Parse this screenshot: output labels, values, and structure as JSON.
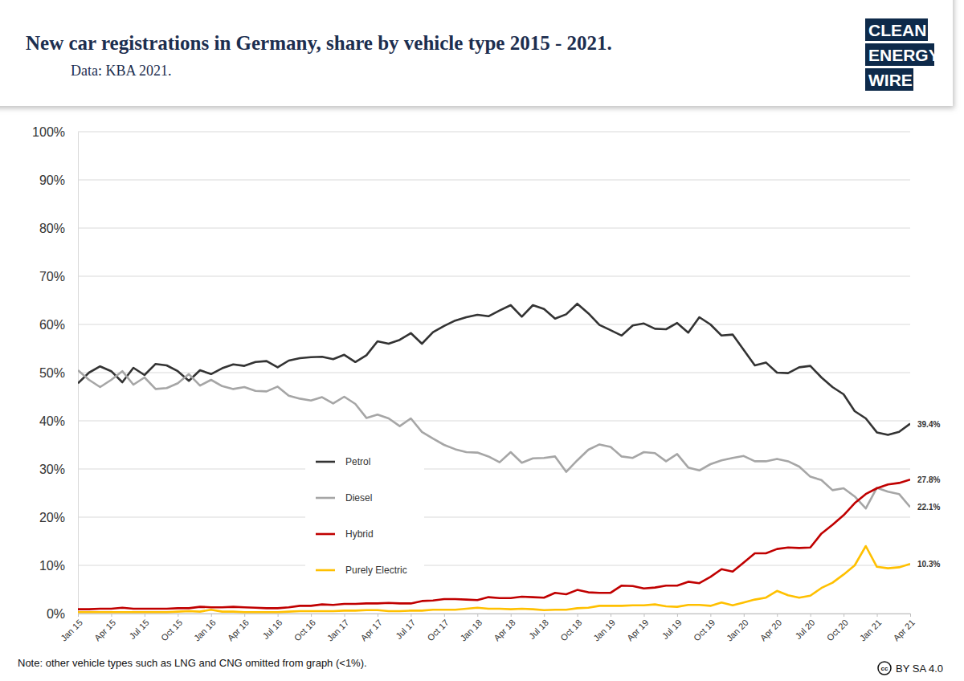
{
  "chart_data": {
    "type": "line",
    "title": "New car registrations in Germany, share by vehicle type 2015 - 2021.",
    "subtitle": "Data: KBA 2021.",
    "note": "Note: other vehicle types such as LNG and CNG omitted from graph (<1%).",
    "logo": [
      "CLEAN",
      "ENERGY",
      "WIRE"
    ],
    "license_icon": "cc",
    "license": "BY SA 4.0",
    "categories": [
      "Jan 15",
      null,
      null,
      "Apr 15",
      null,
      null,
      "Jul 15",
      null,
      null,
      "Oct 15",
      null,
      null,
      "Jan 16",
      null,
      null,
      "Apr 16",
      null,
      null,
      "Jul 16",
      null,
      null,
      "Oct 16",
      null,
      null,
      "Jan 17",
      null,
      null,
      "Apr 17",
      null,
      null,
      "Jul 17",
      null,
      null,
      "Oct 17",
      null,
      null,
      "Jan 18",
      null,
      null,
      "Apr 18",
      null,
      null,
      "Jul 18",
      null,
      null,
      "Oct 18",
      null,
      null,
      "Jan 19",
      null,
      null,
      "Apr 19",
      null,
      null,
      "Jul 19",
      null,
      null,
      "Oct 19",
      null,
      null,
      "Jan 20",
      null,
      null,
      "Apr 20",
      null,
      null,
      "Jul 20",
      null,
      null,
      "Oct 20",
      null,
      null,
      "Jan 21",
      null,
      null,
      "Apr 21"
    ],
    "series": [
      {
        "name": "Petrol",
        "color": "#333333",
        "values": [
          47.8,
          50,
          51.3,
          50.3,
          48,
          51,
          49.5,
          51.8,
          51.5,
          50.3,
          48.3,
          50.5,
          49.7,
          50.9,
          51.7,
          51.4,
          52.2,
          52.4,
          51.1,
          52.5,
          53,
          53.2,
          53.3,
          52.8,
          53.7,
          52.2,
          53.6,
          56.5,
          56,
          56.8,
          58.2,
          56,
          58.4,
          59.7,
          60.8,
          61.5,
          62,
          61.7,
          62.9,
          64,
          61.6,
          64,
          63.2,
          61.2,
          62.1,
          64.3,
          62.3,
          59.9,
          58.8,
          57.7,
          59.8,
          60.2,
          59.1,
          59,
          60.3,
          58.3,
          61.5,
          60,
          57.7,
          57.9,
          54.7,
          51.5,
          52.1,
          50,
          49.9,
          51.1,
          51.4,
          49,
          47,
          45.5,
          42,
          40.5,
          37.6,
          37.1,
          37.7,
          39.4
        ]
      },
      {
        "name": "Diesel",
        "color": "#a6a6a6",
        "values": [
          50.5,
          48.5,
          47,
          48.5,
          50.3,
          47.5,
          49,
          46.6,
          46.8,
          47.8,
          49.7,
          47.3,
          48.5,
          47.2,
          46.6,
          47,
          46.2,
          46.1,
          47.1,
          45.2,
          44.6,
          44.2,
          44.9,
          43.6,
          45,
          43.5,
          40.6,
          41.3,
          40.5,
          38.9,
          40.5,
          37.7,
          36.3,
          35,
          34.1,
          33.5,
          33.4,
          32.6,
          31.4,
          33.5,
          31.3,
          32.2,
          32.3,
          32.6,
          29.4,
          31.8,
          34,
          35.1,
          34.6,
          32.6,
          32.3,
          33.5,
          33.3,
          31.6,
          33.1,
          30.3,
          29.7,
          31,
          31.8,
          32.3,
          32.7,
          31.6,
          31.6,
          32.1,
          31.6,
          30.5,
          28.4,
          27.7,
          25.6,
          26,
          24.3,
          21.8,
          26.1,
          25.3,
          24.8,
          22.1
        ]
      },
      {
        "name": "Hybrid",
        "color": "#c00000",
        "values": [
          0.9,
          0.9,
          1,
          1,
          1.2,
          1,
          1,
          1,
          1,
          1.1,
          1.1,
          1.4,
          1.3,
          1.3,
          1.4,
          1.3,
          1.2,
          1.1,
          1.1,
          1.3,
          1.6,
          1.6,
          1.9,
          1.8,
          2,
          2,
          2.1,
          2.1,
          2.2,
          2.1,
          2.1,
          2.6,
          2.7,
          3,
          3,
          2.9,
          2.8,
          3.4,
          3.2,
          3.2,
          3.5,
          3.4,
          3.3,
          4.3,
          4,
          4.9,
          4.4,
          4.3,
          4.3,
          5.8,
          5.7,
          5.2,
          5.4,
          5.8,
          5.8,
          6.6,
          6.3,
          7.6,
          9.2,
          8.7,
          10.6,
          12.5,
          12.5,
          13.4,
          13.7,
          13.6,
          13.7,
          16.6,
          18.4,
          20.4,
          22.9,
          24.8,
          26,
          26.8,
          27.1,
          27.8
        ]
      },
      {
        "name": "Purely Electric",
        "color": "#ffc000",
        "values": [
          0.3,
          0.3,
          0.3,
          0.3,
          0.3,
          0.3,
          0.3,
          0.3,
          0.3,
          0.4,
          0.5,
          0.4,
          0.8,
          0.4,
          0.4,
          0.3,
          0.3,
          0.3,
          0.3,
          0.4,
          0.5,
          0.5,
          0.5,
          0.5,
          0.6,
          0.6,
          0.7,
          0.7,
          0.5,
          0.5,
          0.6,
          0.6,
          0.8,
          0.8,
          0.8,
          1,
          1.2,
          1,
          1,
          0.9,
          1,
          0.9,
          0.7,
          0.8,
          0.8,
          1.1,
          1.2,
          1.6,
          1.6,
          1.6,
          1.7,
          1.7,
          1.9,
          1.5,
          1.4,
          1.8,
          1.8,
          1.6,
          2.3,
          1.7,
          2.3,
          2.9,
          3.3,
          4.7,
          3.8,
          3.3,
          3.7,
          5.3,
          6.4,
          8.1,
          10,
          14,
          9.7,
          9.4,
          9.6,
          10.3
        ]
      }
    ],
    "ylim": [
      0,
      100
    ],
    "yticks": [
      {
        "value": 0,
        "label": "0%"
      },
      {
        "value": 10,
        "label": "10%"
      },
      {
        "value": 20,
        "label": "20%"
      },
      {
        "value": 30,
        "label": "30%"
      },
      {
        "value": 40,
        "label": "40%"
      },
      {
        "value": 50,
        "label": "50%"
      },
      {
        "value": 60,
        "label": "60%"
      },
      {
        "value": 70,
        "label": "70%"
      },
      {
        "value": 80,
        "label": "80%"
      },
      {
        "value": 90,
        "label": "90%"
      },
      {
        "value": 100,
        "label": "100%"
      }
    ],
    "grid": true,
    "legend": "center",
    "annotations": [
      {
        "series": "Petrol",
        "text": "39.4%"
      },
      {
        "series": "Hybrid",
        "text": "27.8%"
      },
      {
        "series": "Diesel",
        "text": "22.1%"
      },
      {
        "series": "Purely Electric",
        "text": "10.3%"
      }
    ]
  }
}
